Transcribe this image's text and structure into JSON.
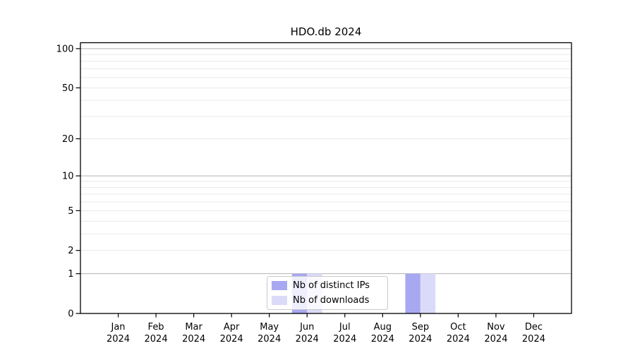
{
  "figure": {
    "background": "#ffffff"
  },
  "chart_data": {
    "type": "bar",
    "title": "HDO.db 2024",
    "categories": [
      "Jan 2024",
      "Feb 2024",
      "Mar 2024",
      "Apr 2024",
      "May 2024",
      "Jun 2024",
      "Jul 2024",
      "Aug 2024",
      "Sep 2024",
      "Oct 2024",
      "Nov 2024",
      "Dec 2024"
    ],
    "series": [
      {
        "name": "Nb of distinct IPs",
        "color": "#a8a8f2",
        "values": [
          0,
          0,
          0,
          0,
          0,
          1,
          0,
          0,
          1,
          0,
          0,
          0
        ]
      },
      {
        "name": "Nb of downloads",
        "color": "#dbdbf9",
        "values": [
          0,
          0,
          0,
          0,
          0,
          1,
          0,
          0,
          1,
          0,
          0,
          0
        ]
      }
    ],
    "xlabel": "",
    "ylabel": "",
    "yscale": "log1p",
    "ylim": [
      0,
      111
    ],
    "y_tick_values": [
      0,
      1,
      2,
      5,
      10,
      20,
      50,
      100
    ],
    "y_tick_labels": [
      "0",
      "1",
      "2",
      "5",
      "10",
      "20",
      "50",
      "100"
    ],
    "gridlines": {
      "major": [
        1,
        10,
        100
      ],
      "minor": [
        2,
        3,
        4,
        5,
        6,
        7,
        8,
        9,
        20,
        30,
        40,
        50,
        60,
        70,
        80,
        90
      ]
    },
    "bar_width_fraction": 0.4,
    "legend": {
      "position": "lower center",
      "entries": [
        "Nb of distinct IPs",
        "Nb of downloads"
      ]
    },
    "colors": {
      "axis": "#000000",
      "tick_text": "#000000",
      "grid_major": "#b3b3b3",
      "grid_minor": "#e9e9e9",
      "legend_border": "#c9c9c9"
    }
  }
}
